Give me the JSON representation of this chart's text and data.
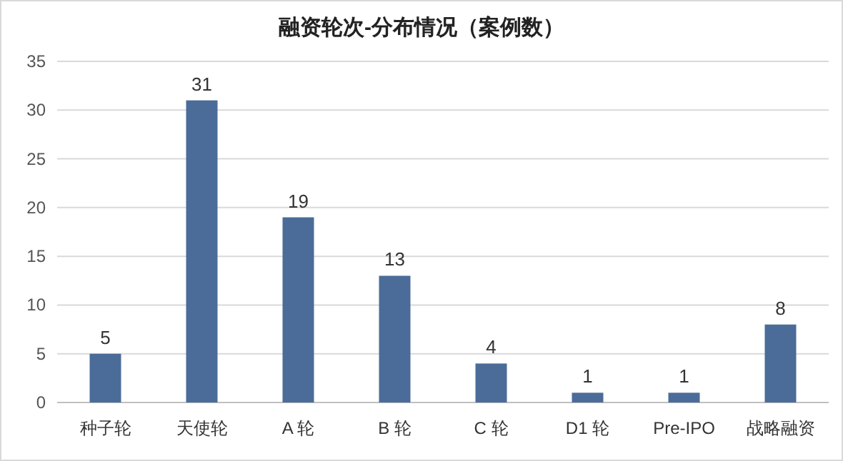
{
  "chart_data": {
    "type": "bar",
    "title": "融资轮次-分布情况（案例数）",
    "categories": [
      "种子轮",
      "天使轮",
      "A 轮",
      "B 轮",
      "C 轮",
      "D1 轮",
      "Pre-IPO",
      "战略融资"
    ],
    "values": [
      5,
      31,
      19,
      13,
      4,
      1,
      1,
      8
    ],
    "color": "#4b6c99",
    "ylim": [
      0,
      35
    ],
    "yticks": [
      0,
      5,
      10,
      15,
      20,
      25,
      30,
      35
    ],
    "grid": "y",
    "data_labels": true
  }
}
